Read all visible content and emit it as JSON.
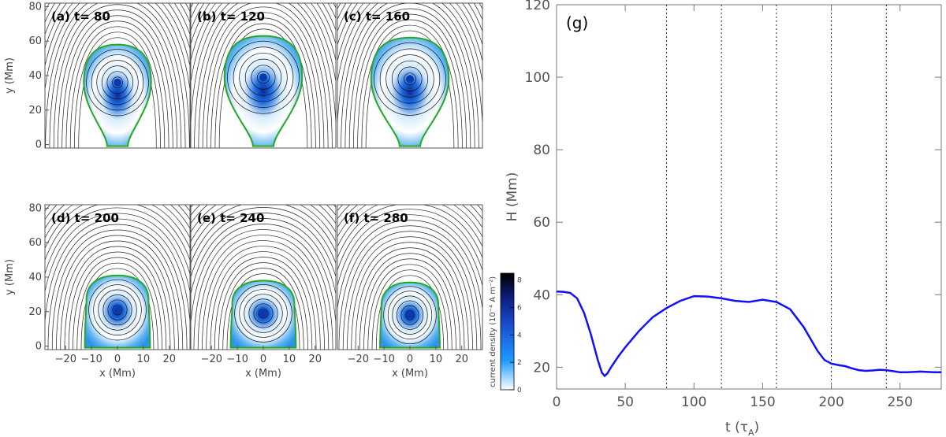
{
  "chart_data": [
    {
      "type": "contour-panels",
      "xlabel": "x (Mm)",
      "ylabel": "y (Mm)",
      "x_ticks": [
        "−20",
        "−10",
        "0",
        "10",
        "20"
      ],
      "y_ticks": [
        "0",
        "20",
        "40",
        "60",
        "80"
      ],
      "xlim": [
        -28,
        28
      ],
      "ylim": [
        -2,
        82
      ],
      "panels": [
        {
          "label": "(a) t= 80",
          "center_y": 36,
          "rope_top": 58,
          "rope_rx": 13,
          "has_tail": true
        },
        {
          "label": "(b) t= 120",
          "center_y": 39,
          "rope_top": 63,
          "rope_rx": 15,
          "has_tail": true
        },
        {
          "label": "(c) t= 160",
          "center_y": 38,
          "rope_top": 62,
          "rope_rx": 15,
          "has_tail": true
        },
        {
          "label": "(d) t= 200",
          "center_y": 21,
          "rope_top": 41,
          "rope_rx": 12,
          "has_tail": false
        },
        {
          "label": "(e) t= 240",
          "center_y": 19,
          "rope_top": 38,
          "rope_rx": 12,
          "has_tail": false
        },
        {
          "label": "(f) t= 280",
          "center_y": 18,
          "rope_top": 37,
          "rope_rx": 11,
          "has_tail": false
        }
      ],
      "colorbar": {
        "label": "current density (10⁻⁴ A m⁻²)",
        "ticks": [
          "0",
          "2",
          "4",
          "6",
          "8"
        ],
        "range": [
          0,
          8.5
        ]
      }
    },
    {
      "type": "line",
      "panel_label": "(g)",
      "xlabel": "t (τ",
      "xlabel_sub": "A",
      "xlabel_close": ")",
      "ylabel": "H (Mm)",
      "x_ticks": [
        "0",
        "50",
        "100",
        "150",
        "200",
        "250"
      ],
      "y_ticks": [
        "20",
        "40",
        "60",
        "80",
        "100",
        "120"
      ],
      "xlim": [
        0,
        280
      ],
      "ylim": [
        14,
        120
      ],
      "vlines": [
        80,
        120,
        160,
        200,
        240
      ],
      "series": [
        {
          "name": "H",
          "color": "#1010ff",
          "x": [
            0,
            5,
            10,
            15,
            20,
            25,
            30,
            33,
            35,
            37,
            40,
            45,
            50,
            60,
            70,
            80,
            90,
            100,
            110,
            120,
            130,
            140,
            150,
            160,
            170,
            180,
            190,
            195,
            200,
            205,
            210,
            215,
            220,
            225,
            230,
            235,
            240,
            245,
            250,
            255,
            260,
            265,
            270,
            275,
            280
          ],
          "y": [
            40.9,
            40.8,
            40.5,
            39,
            35,
            29,
            22,
            18.5,
            17.6,
            18.3,
            20.2,
            23,
            25.5,
            30,
            33.8,
            36.3,
            38.3,
            39.6,
            39.5,
            39,
            38.3,
            38,
            38.6,
            38,
            36,
            31,
            24.5,
            22,
            21,
            20.6,
            20.3,
            19.7,
            19.2,
            19,
            19.1,
            19.3,
            19.2,
            18.9,
            18.6,
            18.6,
            18.7,
            18.8,
            18.7,
            18.6,
            18.6
          ]
        }
      ]
    }
  ]
}
